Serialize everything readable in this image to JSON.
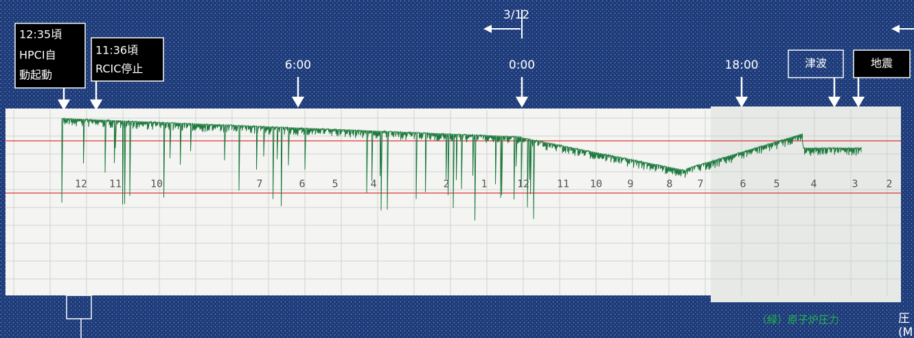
{
  "date_marker": "3/12",
  "time_marks": [
    "6:00",
    "0:00",
    "18:00"
  ],
  "events": {
    "hpci": [
      "12:35頃",
      "HPCI自",
      "動起動"
    ],
    "rcic": [
      "11:36頃",
      "RCIC停止"
    ],
    "tsunami": "津波",
    "earthquake": "地震"
  },
  "paper_scale": [
    "12",
    "11",
    "10",
    "7",
    "6",
    "5",
    "4",
    "2",
    "1",
    "12",
    "11",
    "10",
    "9",
    "8",
    "7",
    "6",
    "5",
    "4",
    "3",
    "2"
  ],
  "legend": "（緑）原子炉圧力",
  "axis_note": [
    "圧",
    "(M"
  ]
}
